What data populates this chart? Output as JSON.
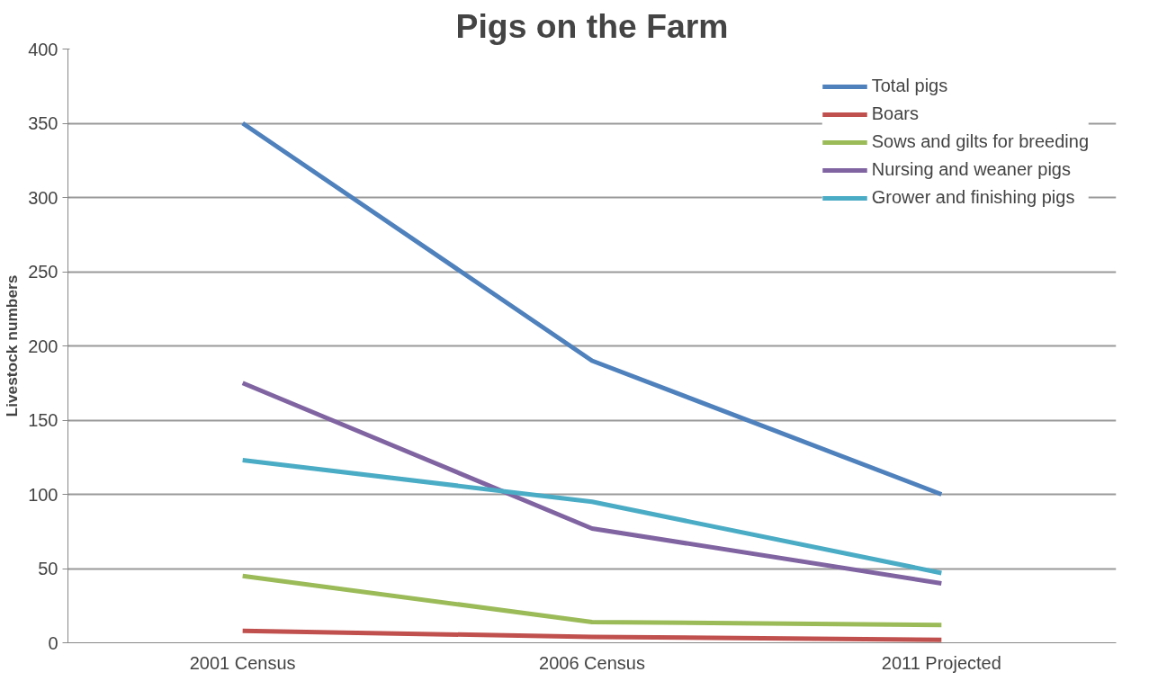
{
  "chart_data": {
    "type": "line",
    "title": "Pigs on the Farm",
    "ylabel": "Livestock numbers",
    "categories": [
      "2001 Census",
      "2006 Census",
      "2011 Projected"
    ],
    "series": [
      {
        "name": "Total pigs",
        "color": "#4f81bd",
        "values": [
          350,
          190,
          100
        ]
      },
      {
        "name": "Boars",
        "color": "#c0504d",
        "values": [
          8,
          4,
          2
        ]
      },
      {
        "name": "Sows and gilts for breeding",
        "color": "#9bbb59",
        "values": [
          45,
          14,
          12
        ]
      },
      {
        "name": "Nursing and weaner pigs",
        "color": "#8064a2",
        "values": [
          175,
          77,
          40
        ]
      },
      {
        "name": "Grower and finishing pigs",
        "color": "#4bacc6",
        "values": [
          123,
          95,
          47
        ]
      }
    ],
    "ylim": [
      0,
      400
    ],
    "yticks": [
      0,
      50,
      100,
      150,
      200,
      250,
      300,
      350,
      400
    ],
    "grid": "y",
    "legend": "top right",
    "marker": "none",
    "line_style": "solid"
  }
}
